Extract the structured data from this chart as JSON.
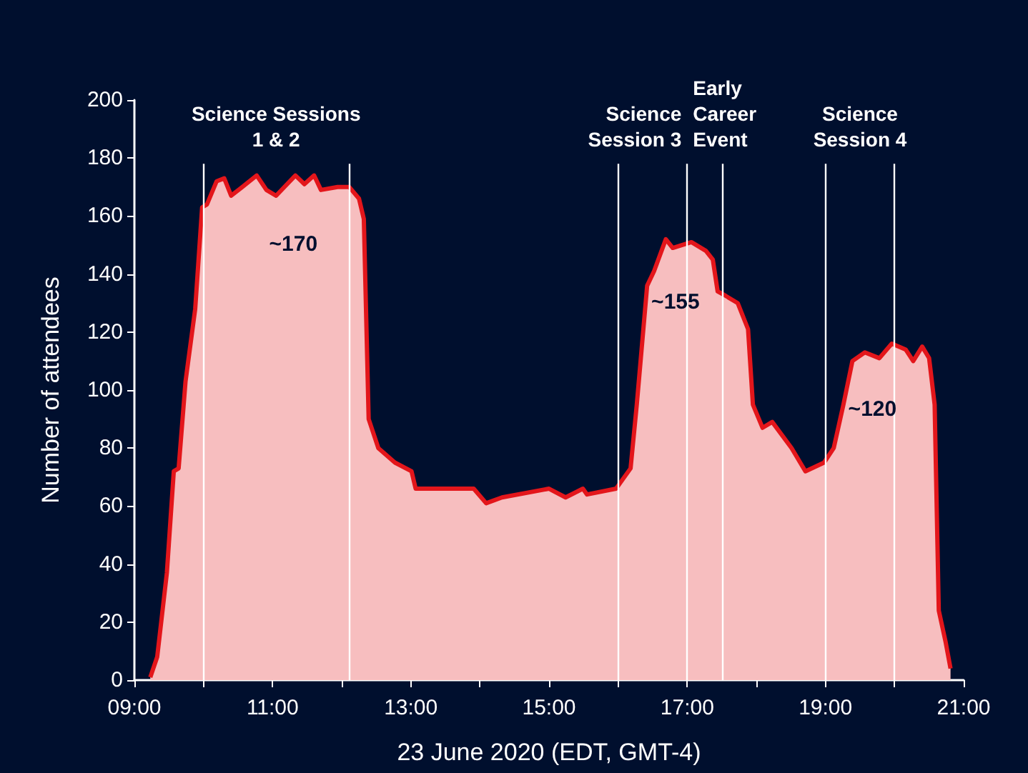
{
  "chart_data": {
    "type": "area",
    "xlabel": "23 June 2020 (EDT, GMT-4)",
    "ylabel": "Number of attendees",
    "xlim": [
      9,
      21
    ],
    "ylim": [
      0,
      200
    ],
    "xticks": [
      {
        "value": 9,
        "label": "09:00"
      },
      {
        "value": 10,
        "label": null
      },
      {
        "value": 11,
        "label": "11:00"
      },
      {
        "value": 12,
        "label": null
      },
      {
        "value": 13,
        "label": "13:00"
      },
      {
        "value": 14,
        "label": null
      },
      {
        "value": 15,
        "label": "15:00"
      },
      {
        "value": 16,
        "label": null
      },
      {
        "value": 17,
        "label": "17:00"
      },
      {
        "value": 18,
        "label": null
      },
      {
        "value": 19,
        "label": "19:00"
      },
      {
        "value": 20,
        "label": null
      },
      {
        "value": 21,
        "label": "21:00"
      }
    ],
    "yticks": [
      0,
      20,
      40,
      60,
      80,
      100,
      120,
      140,
      160,
      180,
      200
    ],
    "series": [
      {
        "color": "#e3161b",
        "x": [
          9.23,
          9.33,
          9.47,
          9.57,
          9.64,
          9.74,
          9.88,
          9.98,
          10.05,
          10.19,
          10.3,
          10.4,
          10.56,
          10.77,
          10.91,
          11.05,
          11.33,
          11.46,
          11.6,
          11.7,
          11.94,
          12.11,
          12.25,
          12.32,
          12.39,
          12.53,
          12.77,
          13.01,
          13.07,
          13.44,
          13.64,
          13.91,
          14.09,
          14.32,
          15.0,
          15.24,
          15.49,
          15.55,
          15.97,
          16.18,
          16.27,
          16.42,
          16.52,
          16.69,
          16.79,
          17.06,
          17.27,
          17.37,
          17.44,
          17.52,
          17.73,
          17.88,
          17.95,
          18.09,
          18.23,
          18.51,
          18.71,
          18.98,
          19.12,
          19.26,
          19.39,
          19.57,
          19.78,
          19.96,
          20.16,
          20.27,
          20.4,
          20.5,
          20.58,
          20.64,
          20.74,
          20.81
        ],
        "values": [
          1,
          8,
          37,
          72,
          73,
          103,
          128,
          163,
          164,
          172,
          173,
          167,
          170,
          174,
          169,
          167,
          174,
          171,
          174,
          169,
          170,
          170,
          166,
          159,
          90,
          80,
          75,
          72,
          66,
          66,
          66,
          66,
          61,
          63,
          66,
          63,
          66,
          64,
          66,
          73,
          95,
          136,
          141,
          152,
          149,
          151,
          148,
          145,
          134,
          133,
          130,
          121,
          95,
          87,
          89,
          80,
          72,
          75,
          80,
          95,
          110,
          113,
          111,
          116,
          114,
          110,
          115,
          111,
          95,
          24,
          13,
          4
        ]
      }
    ],
    "ref_lines": [
      {
        "axis": "x",
        "value": 10,
        "color": "#ffffff",
        "label": "Science Sessions\n1 & 2"
      },
      {
        "axis": "x",
        "value": 12.1,
        "color": "#ffffff"
      },
      {
        "axis": "x",
        "value": 16,
        "color": "#ffffff",
        "label": "Science\nSession 3"
      },
      {
        "axis": "x",
        "value": 17,
        "color": "#ffffff",
        "label": "Early\nCareer\nEvent"
      },
      {
        "axis": "x",
        "value": 17.5,
        "color": "#ffffff"
      },
      {
        "axis": "x",
        "value": 19,
        "color": "#ffffff",
        "label": "Science\nSession 4"
      },
      {
        "axis": "x",
        "value": 20,
        "color": "#ffffff"
      }
    ],
    "annotations": [
      {
        "text": "~170",
        "x": 11.3,
        "y": 170
      },
      {
        "text": "~155",
        "x": 16.83,
        "y": 150
      },
      {
        "text": "~120",
        "x": 19.68,
        "y": 113
      }
    ]
  }
}
